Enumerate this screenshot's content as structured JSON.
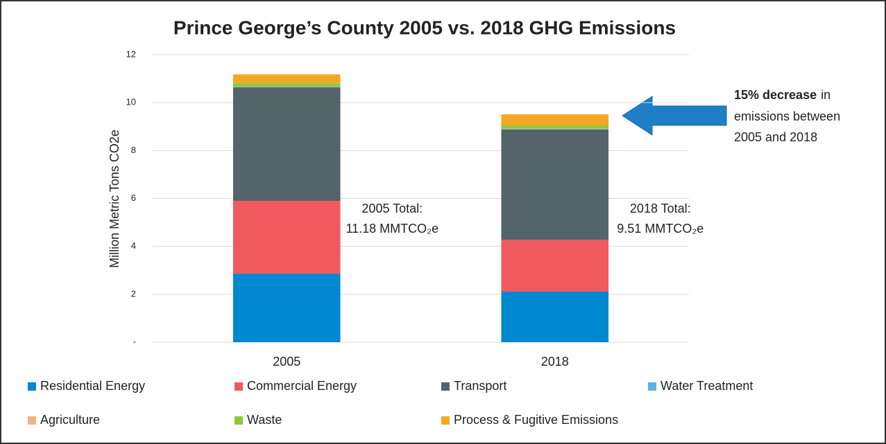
{
  "chart_data": {
    "type": "stacked_bar",
    "title": "Prince George’s County 2005 vs. 2018 GHG Emissions",
    "y_label": "Million Metric Tons CO2e",
    "categories": [
      "2005",
      "2018"
    ],
    "series": [
      {
        "name": "Residential Energy",
        "color": "#0088d1",
        "values": [
          2.86,
          2.11
        ]
      },
      {
        "name": "Commercial Energy",
        "color": "#f05a5e",
        "values": [
          3.04,
          2.17
        ]
      },
      {
        "name": "Transport",
        "color": "#55636b",
        "values": [
          4.74,
          4.6
        ]
      },
      {
        "name": "Water Treatment",
        "color": "#5ab4e5",
        "values": [
          0.02,
          0.02
        ]
      },
      {
        "name": "Agriculture",
        "color": "#f4b183",
        "values": [
          0.01,
          0.01
        ]
      },
      {
        "name": "Waste",
        "color": "#92c83e",
        "values": [
          0.15,
          0.14
        ]
      },
      {
        "name": "Process & Fugitive Emissions",
        "color": "#f5a623",
        "values": [
          0.36,
          0.46
        ]
      }
    ],
    "ylim": [
      0,
      12
    ],
    "yticks": [
      {
        "value": 0,
        "label": "-"
      },
      2,
      4,
      6,
      8,
      10,
      12
    ],
    "grid": true,
    "totals": [
      {
        "line1": "2005 Total:",
        "line2": "11.18 MMTCO₂e"
      },
      {
        "line1": "2018 Total:",
        "line2": "9.51 MMTCO₂e"
      }
    ],
    "callout": {
      "bold": "15% decrease",
      "rest": "in",
      "line2": "emissions between",
      "line3": "2005 and 2018"
    }
  }
}
